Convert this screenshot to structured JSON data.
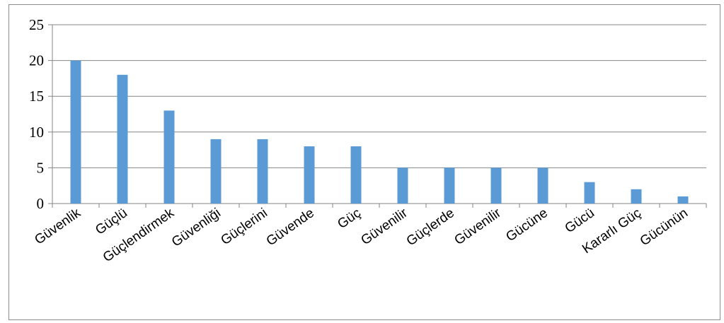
{
  "chart_data": {
    "type": "bar",
    "categories": [
      "Güvenlik",
      "Güçlü",
      "Güçlendirmek",
      "Güvenliği",
      "Güçlerini",
      "Güvende",
      "Güç",
      "Güvenilir",
      "Güçlerde",
      "Güvenilir",
      "Gücüne",
      "Gücü",
      "Kararlı Güç",
      "Gücünün"
    ],
    "values": [
      20,
      18,
      13,
      9,
      9,
      8,
      8,
      5,
      5,
      5,
      5,
      3,
      2,
      1
    ],
    "title": "",
    "xlabel": "",
    "ylabel": "",
    "ylim": [
      0,
      25
    ],
    "yticks": [
      0,
      5,
      10,
      15,
      20,
      25
    ],
    "grid": true,
    "legend": "none",
    "bar_color": "#5b9bd5",
    "grid_color": "#868686"
  }
}
